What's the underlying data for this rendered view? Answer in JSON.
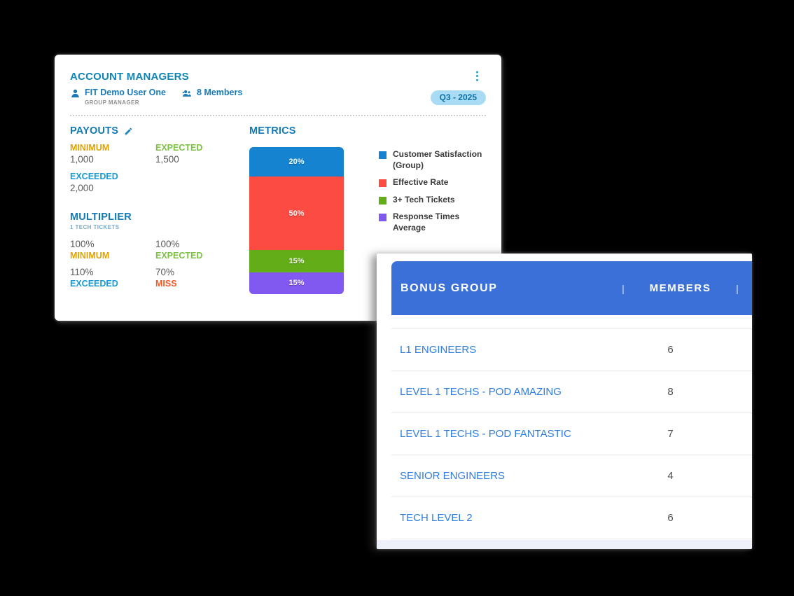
{
  "manager_card": {
    "title": "ACCOUNT MANAGERS",
    "user": {
      "name": "FIT Demo User One",
      "role": "GROUP MANAGER"
    },
    "members_label": "8 Members",
    "period_badge": "Q3 - 2025",
    "payouts": {
      "heading": "PAYOUTS",
      "items": [
        {
          "label": "MINIMUM",
          "value": "1,000",
          "color": "#dfa207"
        },
        {
          "label": "EXPECTED",
          "value": "1,500",
          "color": "#7cc142"
        },
        {
          "label": "EXCEEDED",
          "value": "2,000",
          "color": "#189bd5"
        }
      ]
    },
    "multiplier": {
      "heading": "MULTIPLIER",
      "subheading": "1 TECH TICKETS",
      "items": [
        {
          "value": "100%",
          "label": "MINIMUM",
          "color": "#dfa207"
        },
        {
          "value": "100%",
          "label": "EXPECTED",
          "color": "#7cc142"
        },
        {
          "value": "110%",
          "label": "EXCEEDED",
          "color": "#189bd5"
        },
        {
          "value": "70%",
          "label": "MISS",
          "color": "#f15e2c"
        }
      ]
    },
    "metrics_heading": "METRICS"
  },
  "chart_data": {
    "type": "bar",
    "stacked": true,
    "orientation": "vertical",
    "title": "METRICS",
    "ylim": [
      0,
      100
    ],
    "legend_position": "right",
    "series": [
      {
        "name": "Customer Satisfaction (Group)",
        "value": 20,
        "label": "20%",
        "color": "#1583d0"
      },
      {
        "name": "Effective Rate",
        "value": 50,
        "label": "50%",
        "color": "#fb4b42"
      },
      {
        "name": "3+ Tech Tickets",
        "value": 15,
        "label": "15%",
        "color": "#63ae18"
      },
      {
        "name": "Response Times Average",
        "value": 15,
        "label": "15%",
        "color": "#8158f0"
      }
    ]
  },
  "bonus_table": {
    "columns": {
      "group": "BONUS GROUP",
      "members": "MEMBERS"
    },
    "separator": "|",
    "header_color": "#3b70d9",
    "rows": [
      {
        "group": "L1 ENGINEERS",
        "members": "6"
      },
      {
        "group": "LEVEL 1 TECHS - POD AMAZING",
        "members": "8"
      },
      {
        "group": "LEVEL 1 TECHS - POD FANTASTIC",
        "members": "7"
      },
      {
        "group": "SENIOR ENGINEERS",
        "members": "4"
      },
      {
        "group": "TECH LEVEL 2",
        "members": "6"
      }
    ]
  },
  "icons": {
    "menu": "⋮"
  }
}
